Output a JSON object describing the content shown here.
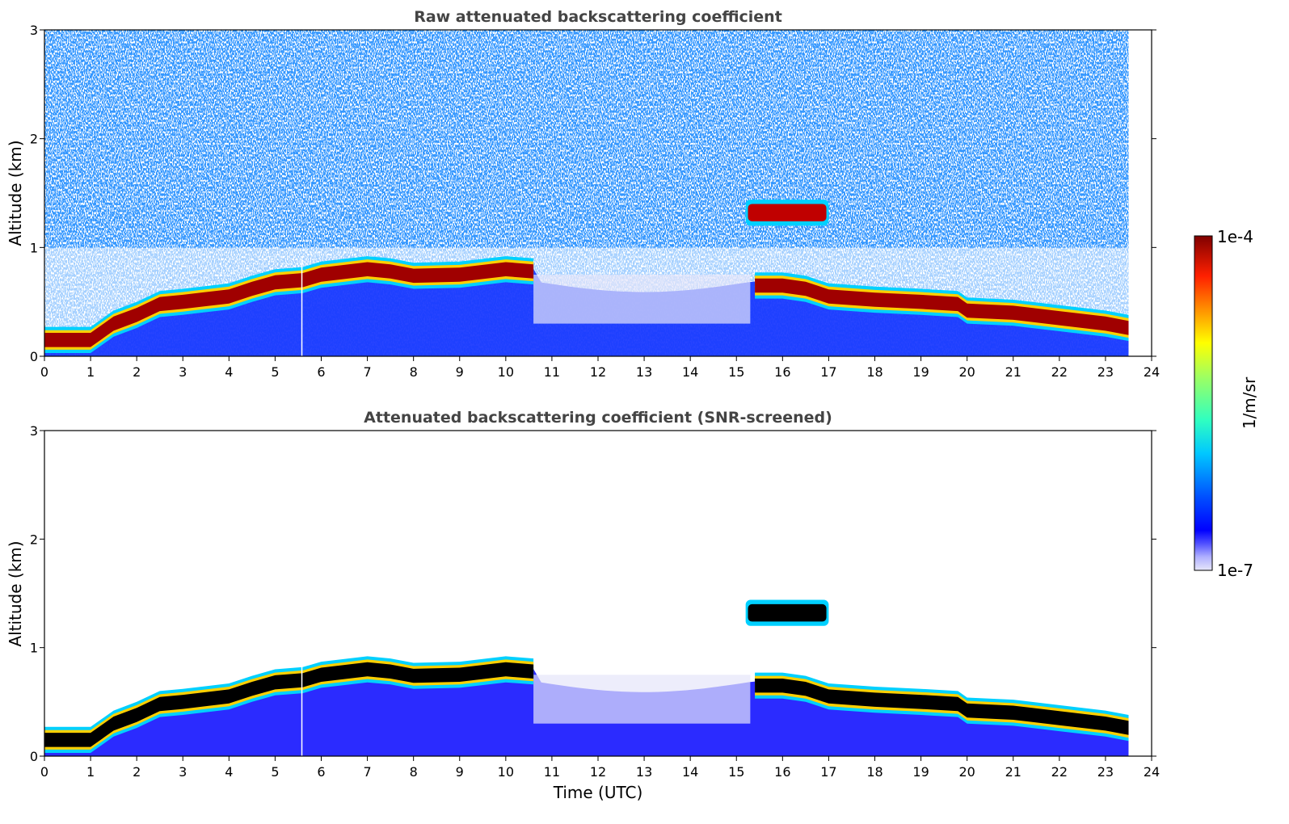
{
  "chart_data": [
    {
      "type": "heatmap",
      "title": "Raw attenuated backscattering coefficient",
      "xlabel": "",
      "ylabel": "Altitude (km)",
      "xlim": [
        0,
        24
      ],
      "ylim": [
        0,
        3
      ],
      "xticks": [
        "0",
        "1",
        "2",
        "3",
        "4",
        "5",
        "6",
        "7",
        "8",
        "9",
        "10",
        "11",
        "12",
        "13",
        "14",
        "15",
        "16",
        "17",
        "18",
        "19",
        "20",
        "21",
        "22",
        "23",
        "24"
      ],
      "yticks": [
        "0",
        "1",
        "2",
        "3"
      ],
      "data_end_time": 23.5,
      "features": {
        "boundary_layer_top_km": [
          [
            0,
            0.15
          ],
          [
            1,
            0.15
          ],
          [
            1.5,
            0.3
          ],
          [
            2,
            0.38
          ],
          [
            2.5,
            0.48
          ],
          [
            3,
            0.5
          ],
          [
            4,
            0.55
          ],
          [
            4.5,
            0.62
          ],
          [
            5,
            0.68
          ],
          [
            5.6,
            0.7
          ],
          [
            6,
            0.75
          ],
          [
            7,
            0.8
          ],
          [
            7.5,
            0.78
          ],
          [
            8,
            0.74
          ],
          [
            9,
            0.75
          ],
          [
            10,
            0.8
          ],
          [
            10.6,
            0.78
          ]
        ],
        "evening_layer_km": [
          [
            15.4,
            0.65
          ],
          [
            16,
            0.65
          ],
          [
            16.5,
            0.62
          ],
          [
            17,
            0.55
          ],
          [
            18,
            0.52
          ],
          [
            19,
            0.5
          ],
          [
            19.8,
            0.48
          ],
          [
            20,
            0.42
          ],
          [
            21,
            0.4
          ],
          [
            22,
            0.35
          ],
          [
            23,
            0.3
          ],
          [
            23.5,
            0.26
          ]
        ],
        "cloud": {
          "t_start": 14.8,
          "t_end": 17.0,
          "alt_km": 1.32
        }
      }
    },
    {
      "type": "heatmap",
      "title": "Attenuated backscattering coefficient (SNR-screened)",
      "xlabel": "Time (UTC)",
      "ylabel": "Altitude (km)",
      "xlim": [
        0,
        24
      ],
      "ylim": [
        0,
        3
      ],
      "xticks": [
        "0",
        "1",
        "2",
        "3",
        "4",
        "5",
        "6",
        "7",
        "8",
        "9",
        "10",
        "11",
        "12",
        "13",
        "14",
        "15",
        "16",
        "17",
        "18",
        "19",
        "20",
        "21",
        "22",
        "23",
        "24"
      ],
      "yticks": [
        "0",
        "1",
        "2",
        "3"
      ]
    }
  ],
  "colorbar": {
    "label": "1/m/sr",
    "max_label": "1e-4",
    "min_label": "1e-7",
    "scale": "log",
    "range": [
      1e-07,
      0.0001
    ]
  }
}
